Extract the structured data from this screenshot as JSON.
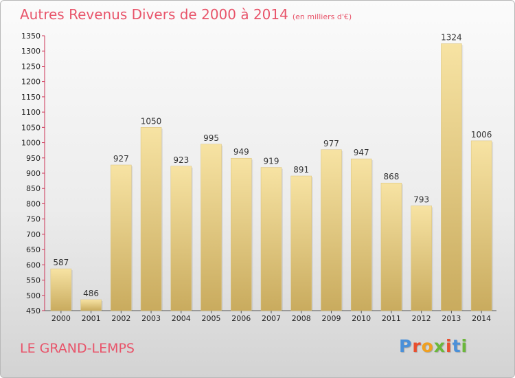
{
  "header": {
    "title": "Autres Revenus Divers de 2000 à 2014",
    "unit": "(en milliers d'€)"
  },
  "footer": {
    "commune": "LE GRAND-LEMPS",
    "logo": "Proxiti",
    "logo_colors": [
      "#4a90d9",
      "#e94e2e",
      "#f0a020",
      "#6bb83a",
      "#e94e2e",
      "#4a90d9",
      "#6bb83a"
    ]
  },
  "colors": {
    "title": "#e8546a",
    "bar_light": "#f7e3a3",
    "bar_dark": "#c9ab5e",
    "axis": "#cc3355"
  },
  "chart_data": {
    "type": "bar",
    "title": "Autres Revenus Divers de 2000 à 2014",
    "subtitle": "(en milliers d'€)",
    "categories": [
      "2000",
      "2001",
      "2002",
      "2003",
      "2004",
      "2005",
      "2006",
      "2007",
      "2008",
      "2009",
      "2010",
      "2011",
      "2012",
      "2013",
      "2014"
    ],
    "values": [
      587,
      486,
      927,
      1050,
      923,
      995,
      949,
      919,
      891,
      977,
      947,
      868,
      793,
      1324,
      1006
    ],
    "ylim": [
      450,
      1350
    ],
    "yticks": [
      450,
      500,
      550,
      600,
      650,
      700,
      750,
      800,
      850,
      900,
      950,
      1000,
      1050,
      1100,
      1150,
      1200,
      1250,
      1300,
      1350
    ],
    "grid": false,
    "legend": "none"
  }
}
